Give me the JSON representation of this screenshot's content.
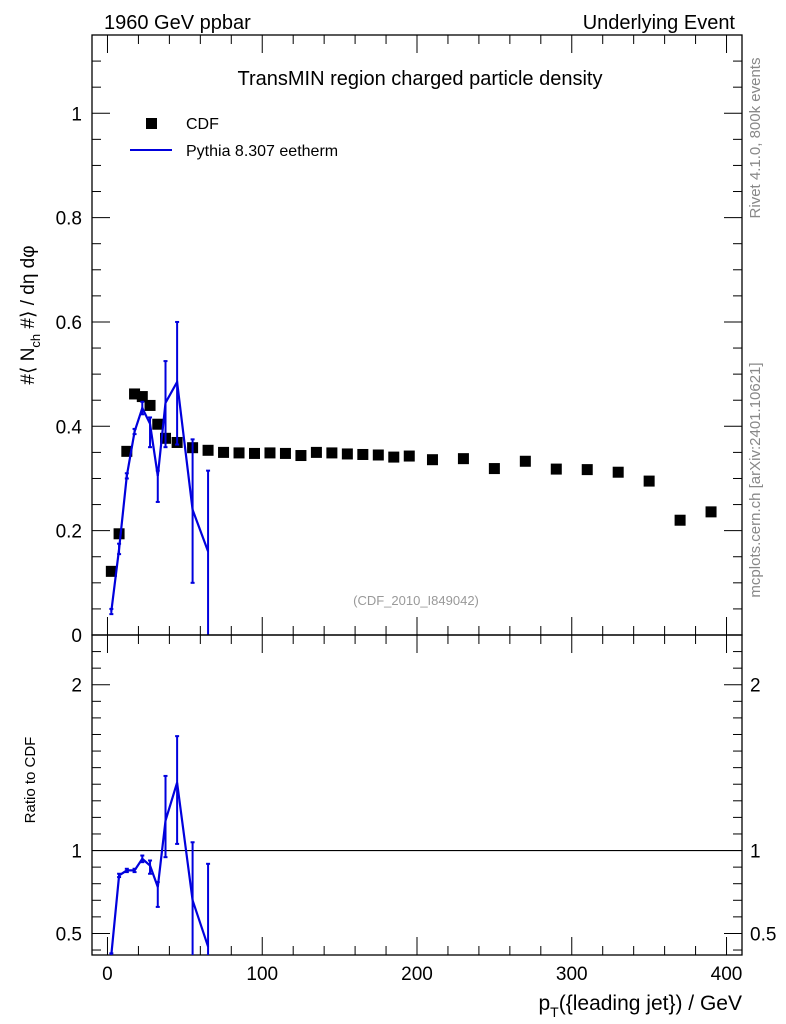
{
  "header": {
    "left": "1960 GeV ppbar",
    "right": "Underlying Event"
  },
  "side_labels": {
    "rivet": "Rivet 4.1.0,  800k events",
    "mcplots": "mcplots.cern.ch [arXiv:2401.10621]"
  },
  "chart_data": [
    {
      "type": "scatter",
      "panel": "main",
      "title": "TransMIN region charged particle density",
      "analysis_id": "(CDF_2010_I849042)",
      "ylabel": "#⟨ N_ch #⟩ / dη dφ",
      "ylabel_parts": {
        "pre": "#⟨ N",
        "sub": "ch",
        "post": " #⟩ / dη dφ"
      },
      "xlim": [
        -10,
        410
      ],
      "ylim": [
        0,
        1.15
      ],
      "yticks": [
        0,
        0.2,
        0.4,
        0.6,
        0.8,
        1
      ],
      "ytick_labels": [
        "0",
        "0.2",
        "0.4",
        "0.6",
        "0.8",
        "1"
      ],
      "legend": {
        "placement": "top-left",
        "entries": [
          {
            "label": "CDF",
            "style": "marker",
            "color": "#000000"
          },
          {
            "label": "Pythia 8.307 eetherm",
            "style": "line",
            "color": "#0000dd"
          }
        ]
      },
      "series": [
        {
          "name": "CDF",
          "style": "markers",
          "color": "#000000",
          "x": [
            2.5,
            7.5,
            12.5,
            17.5,
            22.5,
            27.5,
            32.5,
            37.5,
            45,
            55,
            65,
            75,
            85,
            95,
            105,
            115,
            125,
            135,
            145,
            155,
            165,
            175,
            185,
            195,
            210,
            230,
            250,
            270,
            290,
            310,
            330,
            350,
            370,
            390
          ],
          "y": [
            0.122,
            0.194,
            0.352,
            0.462,
            0.457,
            0.44,
            0.404,
            0.377,
            0.369,
            0.359,
            0.354,
            0.35,
            0.349,
            0.348,
            0.349,
            0.348,
            0.344,
            0.35,
            0.349,
            0.347,
            0.346,
            0.345,
            0.341,
            0.343,
            0.336,
            0.338,
            0.319,
            0.333,
            0.318,
            0.317,
            0.312,
            0.295,
            0.22,
            0.236
          ]
        },
        {
          "name": "Pythia 8.307 eetherm",
          "style": "line",
          "color": "#0000dd",
          "x": [
            2.5,
            7.5,
            12.5,
            17.5,
            22.5,
            27.5,
            32.5,
            37.5,
            45,
            55,
            65
          ],
          "y": [
            0.045,
            0.165,
            0.305,
            0.39,
            0.435,
            0.405,
            0.305,
            0.445,
            0.485,
            0.24,
            0.16
          ],
          "yerr_low": [
            0.005,
            0.01,
            0.005,
            0.005,
            0.012,
            0.045,
            0.05,
            0.085,
            0.12,
            0.14,
            0.24
          ],
          "yerr_high": [
            0.005,
            0.01,
            0.005,
            0.005,
            0.012,
            0.012,
            0.01,
            0.08,
            0.115,
            0.135,
            0.155
          ]
        }
      ]
    },
    {
      "type": "line",
      "panel": "ratio",
      "ylabel": "Ratio to CDF",
      "xlabel": "p_T({leading jet}) / GeV",
      "xlabel_parts": {
        "pre": "p",
        "sub": "T",
        "post": "({leading jet}) / GeV"
      },
      "xlim": [
        -10,
        410
      ],
      "ylim": [
        0.37,
        2.3
      ],
      "xticks": [
        0,
        100,
        200,
        300,
        400
      ],
      "xtick_labels": [
        "0",
        "100",
        "200",
        "300",
        "400"
      ],
      "yticks": [
        0.5,
        1,
        2
      ],
      "ytick_labels": [
        "0.5",
        "1",
        "2"
      ],
      "reference_line": 1,
      "series": [
        {
          "name": "Pythia 8.307 eetherm / CDF",
          "color": "#0000dd",
          "x": [
            2.5,
            7.5,
            12.5,
            17.5,
            22.5,
            27.5,
            32.5,
            37.5,
            45,
            55,
            65
          ],
          "y": [
            0.37,
            0.85,
            0.88,
            0.88,
            0.95,
            0.91,
            0.78,
            1.18,
            1.41,
            0.7,
            0.42
          ],
          "yerr_low": [
            0.01,
            0.01,
            0.01,
            0.01,
            0.02,
            0.05,
            0.12,
            0.22,
            0.37,
            0.34,
            0.68
          ],
          "yerr_high": [
            0.01,
            0.01,
            0.01,
            0.01,
            0.02,
            0.03,
            0.03,
            0.27,
            0.28,
            0.35,
            0.5
          ]
        }
      ]
    }
  ]
}
